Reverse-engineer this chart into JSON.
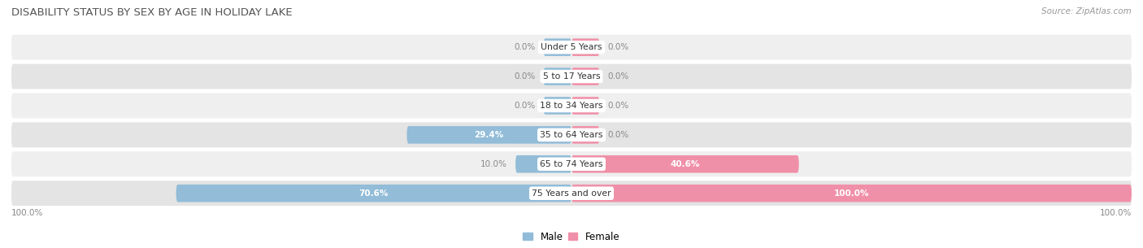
{
  "title": "DISABILITY STATUS BY SEX BY AGE IN HOLIDAY LAKE",
  "source": "Source: ZipAtlas.com",
  "categories": [
    "Under 5 Years",
    "5 to 17 Years",
    "18 to 34 Years",
    "35 to 64 Years",
    "65 to 74 Years",
    "75 Years and over"
  ],
  "male_values": [
    0.0,
    0.0,
    0.0,
    29.4,
    10.0,
    70.6
  ],
  "female_values": [
    0.0,
    0.0,
    0.0,
    0.0,
    40.6,
    100.0
  ],
  "male_color": "#92bcd8",
  "female_color": "#f090a8",
  "row_bg_color_odd": "#efefef",
  "row_bg_color_even": "#e4e4e4",
  "title_color": "#555555",
  "source_color": "#999999",
  "value_color_inside": "#ffffff",
  "value_color_outside": "#888888",
  "axis_label": "100.0%",
  "x_min": -100,
  "x_max": 100,
  "min_stub": 5
}
